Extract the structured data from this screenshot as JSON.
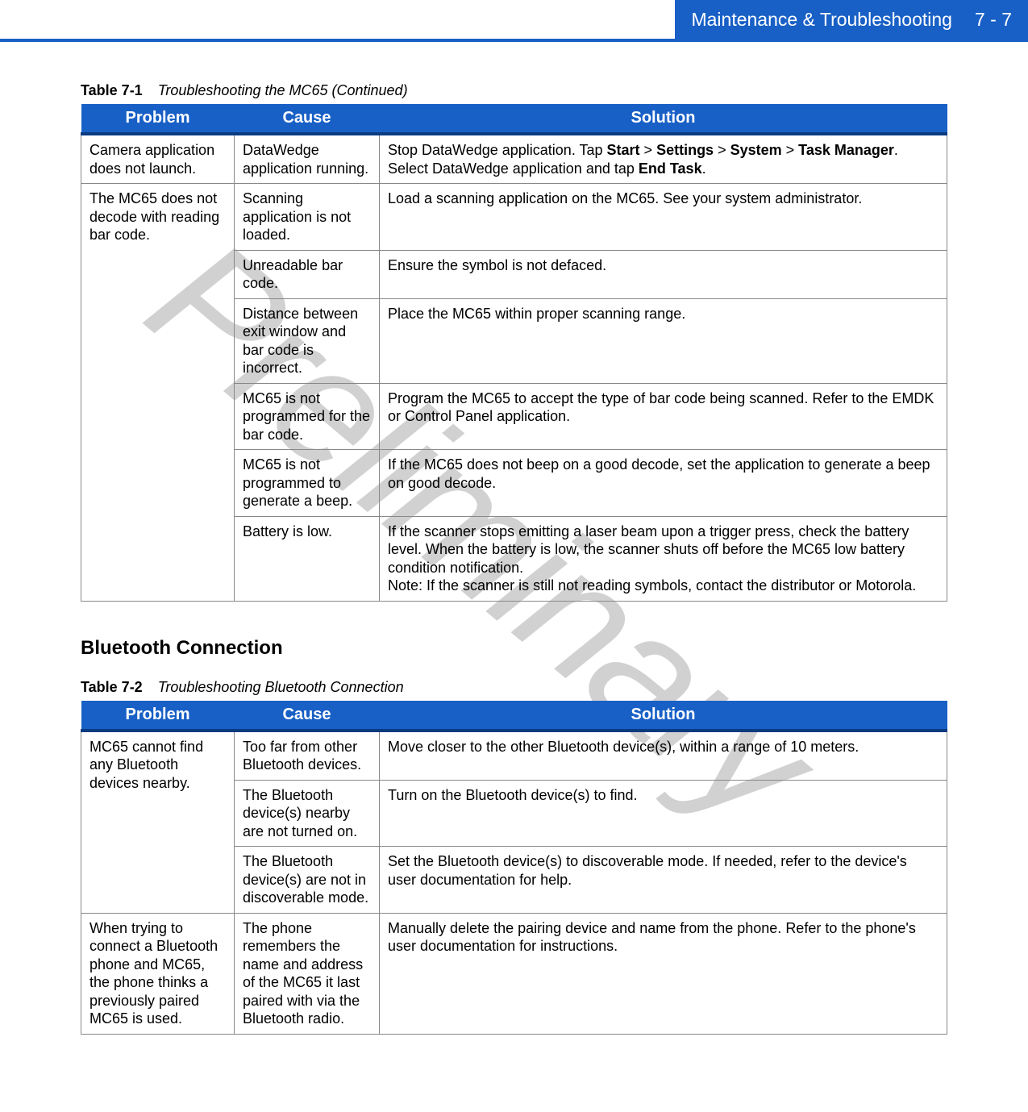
{
  "header": {
    "title": "Maintenance & Troubleshooting",
    "page": "7 - 7"
  },
  "watermark": "Preliminary",
  "table1": {
    "label": "Table 7-1",
    "title": "Troubleshooting the MC65 (Continued)",
    "columns": [
      "Problem",
      "Cause",
      "Solution"
    ],
    "rows": [
      {
        "problem": "Camera application does not launch.",
        "cause": "DataWedge application running.",
        "solution_pre": "Stop DataWedge application. Tap ",
        "solution_b1": "Start",
        "solution_mid1": " > ",
        "solution_b2": "Settings",
        "solution_mid2": " > ",
        "solution_b3": "System",
        "solution_mid3": " > ",
        "solution_b4": "Task Manager",
        "solution_mid4": ". Select DataWedge application and tap ",
        "solution_b5": "End Task",
        "solution_post": "."
      },
      {
        "problem": "The MC65 does not decode with reading bar code.",
        "cause": "Scanning application is not loaded.",
        "solution": "Load a scanning application on the MC65. See your system administrator."
      },
      {
        "cause": "Unreadable bar code.",
        "solution": "Ensure the symbol is not defaced."
      },
      {
        "cause": "Distance between exit window and bar code is incorrect.",
        "solution": "Place the MC65 within proper scanning range."
      },
      {
        "cause": "MC65 is not programmed for the bar code.",
        "solution": "Program the MC65 to accept the type of bar code being scanned. Refer to the EMDK or Control Panel application."
      },
      {
        "cause": "MC65 is not programmed to generate a beep.",
        "solution": "If the MC65 does not beep on a good decode, set the application to generate a beep on good decode."
      },
      {
        "cause": "Battery is low.",
        "solution": "If the scanner stops emitting a laser beam upon a trigger press, check the battery level. When the battery is low, the scanner shuts off before the MC65 low battery condition notification.\nNote: If the scanner is still not reading symbols, contact the distributor or Motorola."
      }
    ]
  },
  "section_heading": "Bluetooth Connection",
  "table2": {
    "label": "Table 7-2",
    "title": "Troubleshooting Bluetooth Connection",
    "columns": [
      "Problem",
      "Cause",
      "Solution"
    ],
    "rows": [
      {
        "problem": "MC65 cannot find any Bluetooth devices nearby.",
        "cause": "Too far from other Bluetooth devices.",
        "solution": "Move closer to the other Bluetooth device(s), within a range of 10 meters."
      },
      {
        "cause": "The Bluetooth device(s) nearby are not turned on.",
        "solution": "Turn on the Bluetooth device(s) to find."
      },
      {
        "cause": "The Bluetooth device(s) are not in discoverable mode.",
        "solution": "Set the Bluetooth device(s) to discoverable mode. If needed, refer to the device's user documentation for help."
      },
      {
        "problem": "When trying to connect a Bluetooth phone and MC65, the phone thinks a previously paired MC65 is used.",
        "cause": "The phone remembers the name and address of the MC65 it last paired with via the Bluetooth radio.",
        "solution": "Manually delete the pairing device and name from the phone. Refer to the phone's user documentation for instructions."
      }
    ]
  }
}
